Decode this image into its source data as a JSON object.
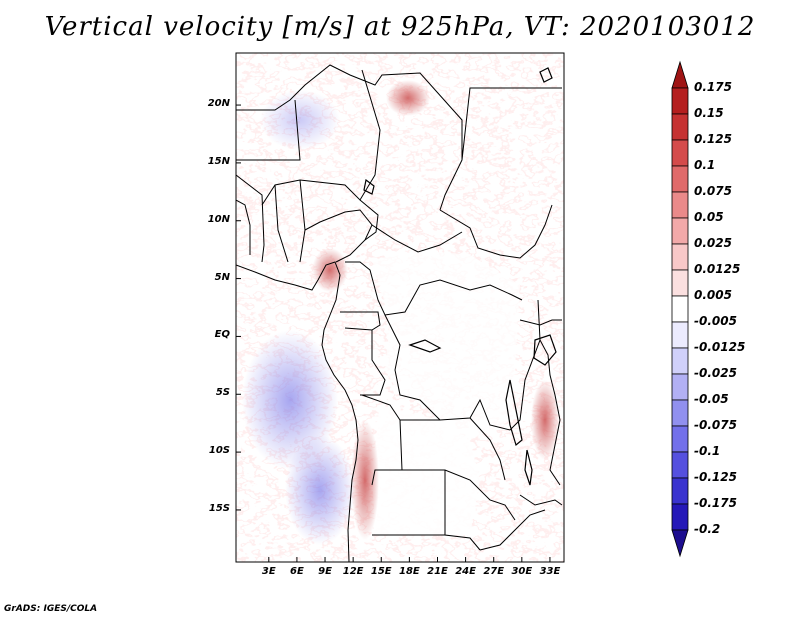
{
  "title": "Vertical velocity [m/s] at 925hPa, VT: 2020103012",
  "footer": "GrADS: IGES/COLA",
  "map": {
    "projection": "lat-lon",
    "lon_range": [
      -0.5,
      34.5
    ],
    "lat_range": [
      -19.5,
      24.5
    ],
    "lat_ticks": [
      {
        "label": "20N",
        "value": 20
      },
      {
        "label": "15N",
        "value": 15
      },
      {
        "label": "10N",
        "value": 10
      },
      {
        "label": "5N",
        "value": 5
      },
      {
        "label": "EQ",
        "value": 0
      },
      {
        "label": "5S",
        "value": -5
      },
      {
        "label": "10S",
        "value": -10
      },
      {
        "label": "15S",
        "value": -15
      }
    ],
    "lon_ticks": [
      {
        "label": "3E",
        "value": 3
      },
      {
        "label": "6E",
        "value": 6
      },
      {
        "label": "9E",
        "value": 9
      },
      {
        "label": "12E",
        "value": 12
      },
      {
        "label": "15E",
        "value": 15
      },
      {
        "label": "18E",
        "value": 18
      },
      {
        "label": "21E",
        "value": 21
      },
      {
        "label": "24E",
        "value": 24
      },
      {
        "label": "27E",
        "value": 27
      },
      {
        "label": "30E",
        "value": 30
      },
      {
        "label": "33E",
        "value": 33
      }
    ]
  },
  "colorbar": {
    "colors": [
      "#1d0e8f",
      "#2518b8",
      "#3a33cf",
      "#5550df",
      "#7370ea",
      "#9190ef",
      "#b2b0f4",
      "#d0d0fa",
      "#ecebfe",
      "#ffffff",
      "#fbe0e0",
      "#f8c8c8",
      "#f2a9a9",
      "#ea8a8a",
      "#e06a6a",
      "#d44b4b",
      "#c63232",
      "#b51f1f",
      "#9f1414"
    ],
    "labels": [
      "0.175",
      "0.15",
      "0.125",
      "0.1",
      "0.075",
      "0.05",
      "0.025",
      "0.0125",
      "0.005",
      "-0.005",
      "-0.0125",
      "-0.025",
      "-0.05",
      "-0.075",
      "-0.1",
      "-0.125",
      "-0.175",
      "-0.2"
    ]
  }
}
